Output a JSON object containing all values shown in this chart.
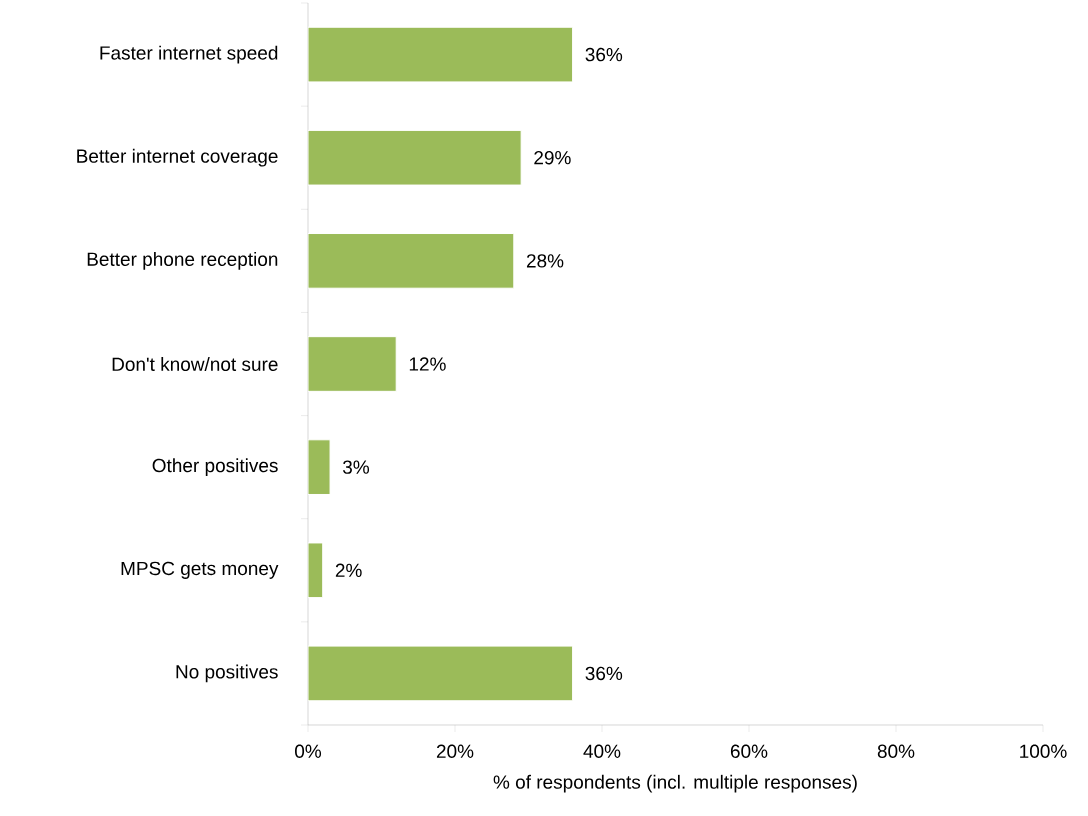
{
  "chart_data": {
    "type": "bar",
    "orientation": "horizontal",
    "xlabel": "% of respondents (incl. multiple responses)",
    "categories": [
      "Faster internet speed",
      "Better internet coverage",
      "Better phone reception",
      "Don't know/not sure",
      "Other positives",
      "MPSC gets money",
      "No positives"
    ],
    "values": [
      36,
      29,
      28,
      12,
      3,
      2,
      36
    ],
    "value_labels": [
      "36%",
      "29%",
      "28%",
      "12%",
      "3%",
      "2%",
      "36%"
    ],
    "color": "#9bbb59",
    "xlim": [
      0,
      100
    ],
    "xticks": [
      {
        "value": 0,
        "label": "0%"
      },
      {
        "value": 20,
        "label": "20%"
      },
      {
        "value": 40,
        "label": "40%"
      },
      {
        "value": 60,
        "label": "60%"
      },
      {
        "value": 80,
        "label": "80%"
      },
      {
        "value": 100,
        "label": "100%"
      }
    ]
  }
}
